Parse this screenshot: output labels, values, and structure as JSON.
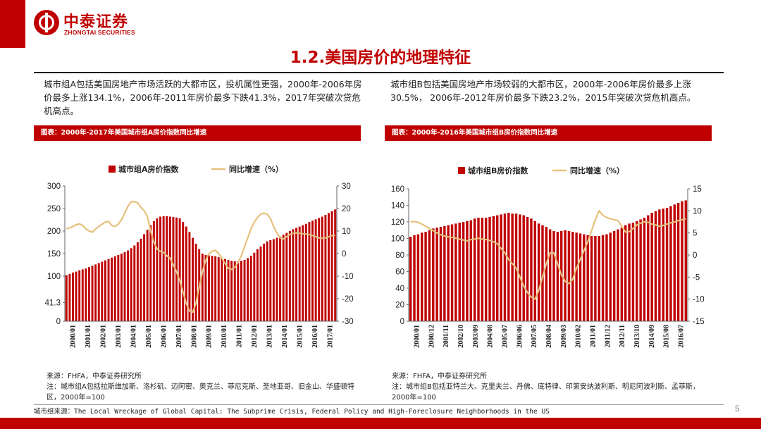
{
  "brand": {
    "name_cn": "中泰证券",
    "name_en": "ZHONGTAI SECURITIES",
    "color": "#c00000"
  },
  "page": {
    "title": "1.2.美国房价的地理特征",
    "number": "5"
  },
  "left": {
    "description": "城市组A包括美国房地产市场活跃的大都市区，投机属性更强，2000年-2006年房价最多上涨134.1%，2006年-2011年房价最多下跌41.3%，2017年突破次贷危机高点。",
    "caption": "图表：2000年-2017年美国城市组A房价指数同比增速",
    "source_line1": "来源：FHFA，中泰证券研究所",
    "source_line2": "注：城市组A包括拉斯维加斯、洛杉矶、迈阿密、奥克兰、菲尼克斯、圣地亚哥、旧金山、华盛顿特区，2000年=100"
  },
  "right": {
    "description": "城市组B包括美国房地产市场较弱的大都市区，2000年-2006年房价最多上涨30.5%， 2006年-2012年房价最多下跌23.2%，2015年突破次贷危机高点。",
    "caption": "图表：2000年-2016年美国城市组B房价指数同比增速",
    "source_line1": "来源：FHFA，中泰证券研究所",
    "source_line2": "注：城市组B包括亚特兰大、克里夫兰、丹佛、底特律、印第安纳波利斯、明尼阿波利斯、孟菲斯，2000年=100"
  },
  "footer": {
    "source": "城市组来源：The Local Wreckage of Global Capital: The Subprime Crisis, Federal Policy and High-Foreclosure Neighborhoods in the US"
  },
  "chart_data": [
    {
      "type": "bar+line",
      "title": "2000年-2017年美国城市组A房价指数同比增速",
      "legend": [
        "城市组A房价指数",
        "同比增速（%）"
      ],
      "bar_color": "#c00000",
      "line_color": "#e6c17c",
      "y_left": {
        "min": 0,
        "max": 300,
        "ticks": [
          0,
          41.3,
          100,
          150,
          200,
          250,
          300
        ]
      },
      "y_right": {
        "min": -30,
        "max": 30,
        "ticks": [
          -30,
          -20,
          -10,
          0,
          10,
          20,
          30
        ]
      },
      "x_tick_labels": [
        "2000/01",
        "2001/01",
        "2002/01",
        "2003/01",
        "2004/01",
        "2005/01",
        "2006/01",
        "2007/01",
        "2008/01",
        "2009/01",
        "2010/01",
        "2011/01",
        "2012/01",
        "2013/01",
        "2014/01",
        "2015/01",
        "2016/01",
        "2017/01"
      ],
      "index_values": [
        102,
        105,
        108,
        110,
        113,
        115,
        117,
        120,
        123,
        126,
        129,
        132,
        135,
        138,
        141,
        144,
        147,
        150,
        153,
        157,
        162,
        168,
        175,
        183,
        193,
        203,
        213,
        222,
        228,
        232,
        233,
        233,
        232,
        231,
        230,
        228,
        220,
        210,
        198,
        185,
        172,
        160,
        150,
        147,
        146,
        145,
        144,
        142,
        140,
        138,
        136,
        134,
        133,
        133,
        134,
        136,
        140,
        145,
        152,
        160,
        166,
        172,
        177,
        180,
        182,
        185,
        188,
        192,
        196,
        200,
        204,
        207,
        210,
        213,
        216,
        220,
        223,
        226,
        229,
        232,
        236,
        240,
        244,
        248
      ],
      "yoy_values": [
        11,
        11.5,
        12,
        12.8,
        13.2,
        12.5,
        11,
        10,
        9.5,
        11,
        12,
        13,
        14,
        14.3,
        12.5,
        12,
        13,
        15,
        18,
        21,
        23,
        23,
        22.5,
        20.5,
        19,
        16.5,
        10,
        5,
        2,
        1,
        0.5,
        -1,
        -2,
        -5,
        -8,
        -12,
        -17,
        -22,
        -25.5,
        -26,
        -22,
        -15,
        -8,
        -3,
        0,
        1,
        1.5,
        0,
        -2,
        -4.5,
        -6.5,
        -7,
        -6,
        -4,
        -1,
        3,
        7,
        11,
        14,
        16,
        17.5,
        18,
        17.5,
        15.5,
        12,
        9,
        7,
        6.5,
        7.5,
        8.5,
        9,
        9.2,
        9,
        8.8,
        8.7,
        8.5,
        8,
        7.5,
        7,
        6.8,
        7,
        7.5,
        8,
        8.2
      ]
    },
    {
      "type": "bar+line",
      "title": "2000年-2016年美国城市组B房价指数同比增速",
      "legend": [
        "城市组B房价指数",
        "同比增速（%）"
      ],
      "bar_color": "#c00000",
      "line_color": "#e6c17c",
      "y_left": {
        "min": 0,
        "max": 160,
        "ticks": [
          0,
          20,
          40,
          60,
          80,
          100,
          120,
          140,
          160
        ]
      },
      "y_right": {
        "min": -15,
        "max": 15,
        "ticks": [
          -15,
          -10,
          -5,
          0,
          5,
          10,
          15
        ]
      },
      "x_tick_labels": [
        "2000/01",
        "2000/12",
        "2001/11",
        "2002/10",
        "2003/09",
        "2004/08",
        "2005/07",
        "2006/06",
        "2007/05",
        "2008/04",
        "2009/03",
        "2010/02",
        "2011/01",
        "2011/12",
        "2012/11",
        "2013/10",
        "2014/09",
        "2015/08",
        "2016/07"
      ],
      "index_values": [
        102,
        104,
        105,
        107,
        108,
        110,
        112,
        113,
        114,
        115,
        116,
        117,
        118,
        119,
        120,
        121,
        122,
        124,
        125,
        125,
        125,
        126,
        127,
        128,
        129,
        130,
        131,
        130,
        130,
        129,
        128,
        126,
        124,
        121,
        118,
        116,
        114,
        111,
        109,
        108,
        109,
        110,
        109,
        108,
        107,
        106,
        105,
        104,
        103,
        103,
        103,
        104,
        105,
        107,
        109,
        111,
        113,
        116,
        118,
        119,
        121,
        123,
        125,
        128,
        131,
        133,
        135,
        136,
        137,
        139,
        141,
        143,
        145,
        146
      ],
      "yoy_values": [
        7.5,
        7.6,
        7.4,
        7.0,
        6.5,
        6.0,
        5.5,
        5.0,
        4.6,
        4.3,
        4.1,
        4.0,
        3.8,
        3.6,
        3.4,
        3.2,
        3.5,
        3.6,
        3.8,
        3.6,
        3.5,
        3.3,
        3.0,
        2.5,
        1.5,
        0.5,
        -1,
        -2,
        -3,
        -5,
        -7,
        -8.5,
        -9.5,
        -10,
        -8,
        -5,
        -2,
        0.5,
        0.5,
        -2,
        -4.5,
        -6,
        -6.5,
        -5.5,
        -3,
        -1,
        1,
        3,
        5.5,
        8,
        10,
        9,
        8.5,
        8.2,
        8,
        7.8,
        6.5,
        5.2,
        5.3,
        6.0,
        6.8,
        7.2,
        7.5,
        7.4,
        7.0,
        6.8,
        6.5,
        6.7,
        7.0,
        7.3,
        7.5,
        7.8,
        8.0,
        8.2
      ]
    }
  ]
}
